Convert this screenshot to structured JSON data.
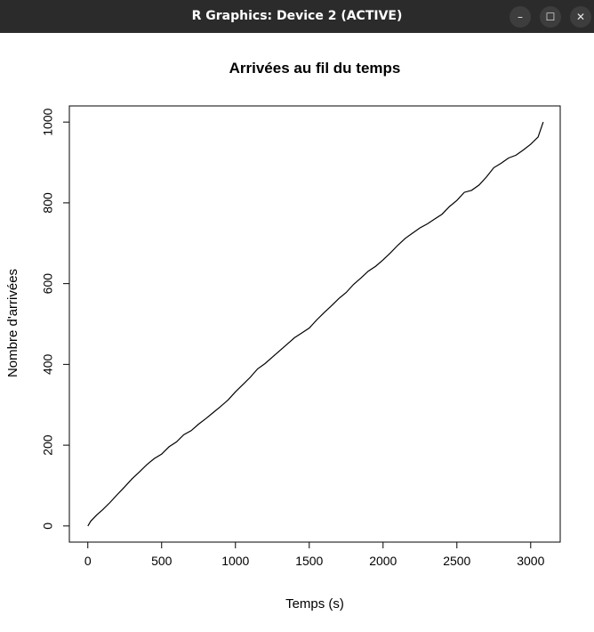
{
  "window": {
    "title": "R Graphics: Device 2 (ACTIVE)",
    "controls": {
      "minimize": "–",
      "maximize": "☐",
      "close": "✕"
    }
  },
  "chart_data": {
    "type": "line",
    "title": "Arrivées au fil du temps",
    "xlabel": "Temps (s)",
    "ylabel": "Nombre d'arrivées",
    "xlim": [
      -125,
      3200
    ],
    "ylim": [
      -40,
      1040
    ],
    "x_ticks": [
      0,
      500,
      1000,
      1500,
      2000,
      2500,
      3000
    ],
    "y_ticks": [
      0,
      200,
      400,
      600,
      800,
      1000
    ],
    "x_tick_labels": [
      "0",
      "500",
      "1000",
      "1500",
      "2000",
      "2500",
      "3000"
    ],
    "y_tick_labels": [
      "0",
      "200",
      "400",
      "600",
      "800",
      "1000"
    ],
    "grid": false,
    "series": [
      {
        "x": [
          0,
          20,
          60,
          100,
          150,
          200,
          250,
          300,
          350,
          400,
          450,
          500,
          550,
          600,
          650,
          700,
          750,
          800,
          850,
          900,
          950,
          1000,
          1050,
          1100,
          1150,
          1200,
          1250,
          1300,
          1350,
          1400,
          1450,
          1500,
          1550,
          1600,
          1650,
          1700,
          1750,
          1800,
          1850,
          1900,
          1950,
          2000,
          2050,
          2100,
          2150,
          2200,
          2250,
          2300,
          2350,
          2400,
          2450,
          2500,
          2550,
          2600,
          2650,
          2700,
          2750,
          2800,
          2850,
          2900,
          2950,
          3000,
          3050,
          3085
        ],
        "y": [
          0,
          12,
          27,
          40,
          58,
          78,
          97,
          117,
          134,
          152,
          167,
          178,
          196,
          208,
          226,
          236,
          252,
          266,
          281,
          296,
          312,
          332,
          350,
          368,
          389,
          402,
          418,
          434,
          450,
          466,
          478,
          490,
          510,
          528,
          545,
          563,
          578,
          598,
          614,
          631,
          643,
          659,
          676,
          695,
          712,
          725,
          738,
          748,
          760,
          772,
          791,
          806,
          826,
          831,
          844,
          864,
          887,
          898,
          911,
          918,
          931,
          945,
          963,
          1000
        ]
      }
    ]
  }
}
